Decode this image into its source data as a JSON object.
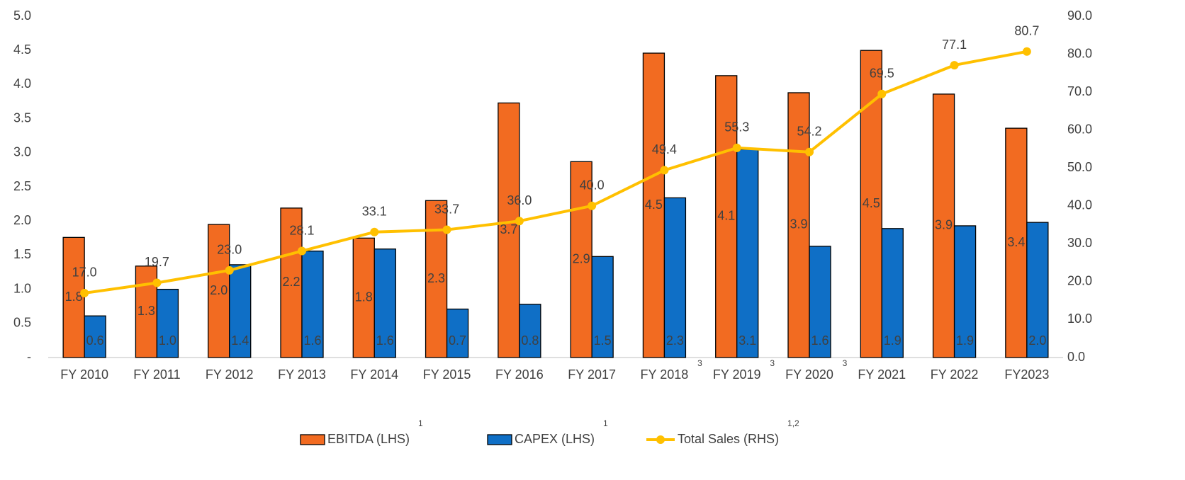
{
  "chart_data": {
    "type": "bar",
    "categories": [
      "FY 2010",
      "FY 2011",
      "FY 2012",
      "FY 2013",
      "FY 2014",
      "FY 2015",
      "FY 2016",
      "FY 2017",
      "FY 2018",
      "FY 2019",
      "FY 2020",
      "FY 2021",
      "FY 2022",
      "FY2023"
    ],
    "category_notes": [
      null,
      null,
      null,
      null,
      null,
      null,
      null,
      null,
      "3",
      "3",
      "3",
      null,
      null,
      null
    ],
    "series": [
      {
        "name": "EBITDA (LHS)",
        "note": "1",
        "type": "bar",
        "color": "#f26b21",
        "values": [
          1.76,
          1.34,
          1.95,
          2.19,
          1.75,
          2.3,
          3.73,
          2.87,
          4.46,
          4.13,
          3.88,
          4.5,
          3.86,
          3.36
        ],
        "value_labels": [
          "1.8",
          "1.3",
          "2.0",
          "2.2",
          "1.8",
          "2.3",
          "3.7",
          "2.9",
          "4.5",
          "4.1",
          "3.9",
          "4.5",
          "3.9",
          "3.4"
        ]
      },
      {
        "name": "CAPEX (LHS)",
        "note": "1",
        "type": "bar",
        "color": "#0f6fc6",
        "values": [
          0.61,
          1.0,
          1.36,
          1.56,
          1.59,
          0.71,
          0.78,
          1.48,
          2.34,
          3.05,
          1.63,
          1.89,
          1.93,
          1.98
        ],
        "value_labels": [
          "0.6",
          "1.0",
          "1.4",
          "1.6",
          "1.6",
          "0.7",
          "0.8",
          "1.5",
          "2.3",
          "3.1",
          "1.6",
          "1.9",
          "1.9",
          "2.0"
        ]
      },
      {
        "name": "Total Sales (RHS)",
        "note": "1,2",
        "type": "line",
        "axis": "y2",
        "color": "#ffc000",
        "values": [
          17.0,
          19.7,
          23.0,
          28.1,
          33.1,
          33.7,
          36.0,
          40.0,
          49.4,
          55.3,
          54.2,
          69.5,
          77.1,
          80.7
        ],
        "value_labels": [
          "17.0",
          "19.7",
          "23.0",
          "28.1",
          "33.1",
          "33.7",
          "36.0",
          "40.0",
          "49.4",
          "55.3",
          "54.2",
          "69.5",
          "77.1",
          "80.7"
        ]
      }
    ],
    "ylim": [
      0,
      5
    ],
    "yticks": [
      {
        "value": 0,
        "label": "-"
      },
      0.5,
      {
        "value": 1,
        "label": "1.0"
      },
      1.5,
      {
        "value": 2,
        "label": "2.0"
      },
      2.5,
      {
        "value": 3,
        "label": "3.0"
      },
      3.5,
      {
        "value": 4,
        "label": "4.0"
      },
      4.5,
      {
        "value": 5,
        "label": "5.0"
      }
    ],
    "y2lim": [
      0,
      90
    ],
    "y2ticks": [
      {
        "value": 0,
        "label": "0.0"
      },
      {
        "value": 10,
        "label": "10.0"
      },
      {
        "value": 20,
        "label": "20.0"
      },
      {
        "value": 30,
        "label": "30.0"
      },
      {
        "value": 40,
        "label": "40.0"
      },
      {
        "value": 50,
        "label": "50.0"
      },
      {
        "value": 60,
        "label": "60.0"
      },
      {
        "value": 70,
        "label": "70.0"
      },
      {
        "value": 80,
        "label": "80.0"
      },
      {
        "value": 90,
        "label": "90.0"
      }
    ],
    "legend": "bottom"
  }
}
